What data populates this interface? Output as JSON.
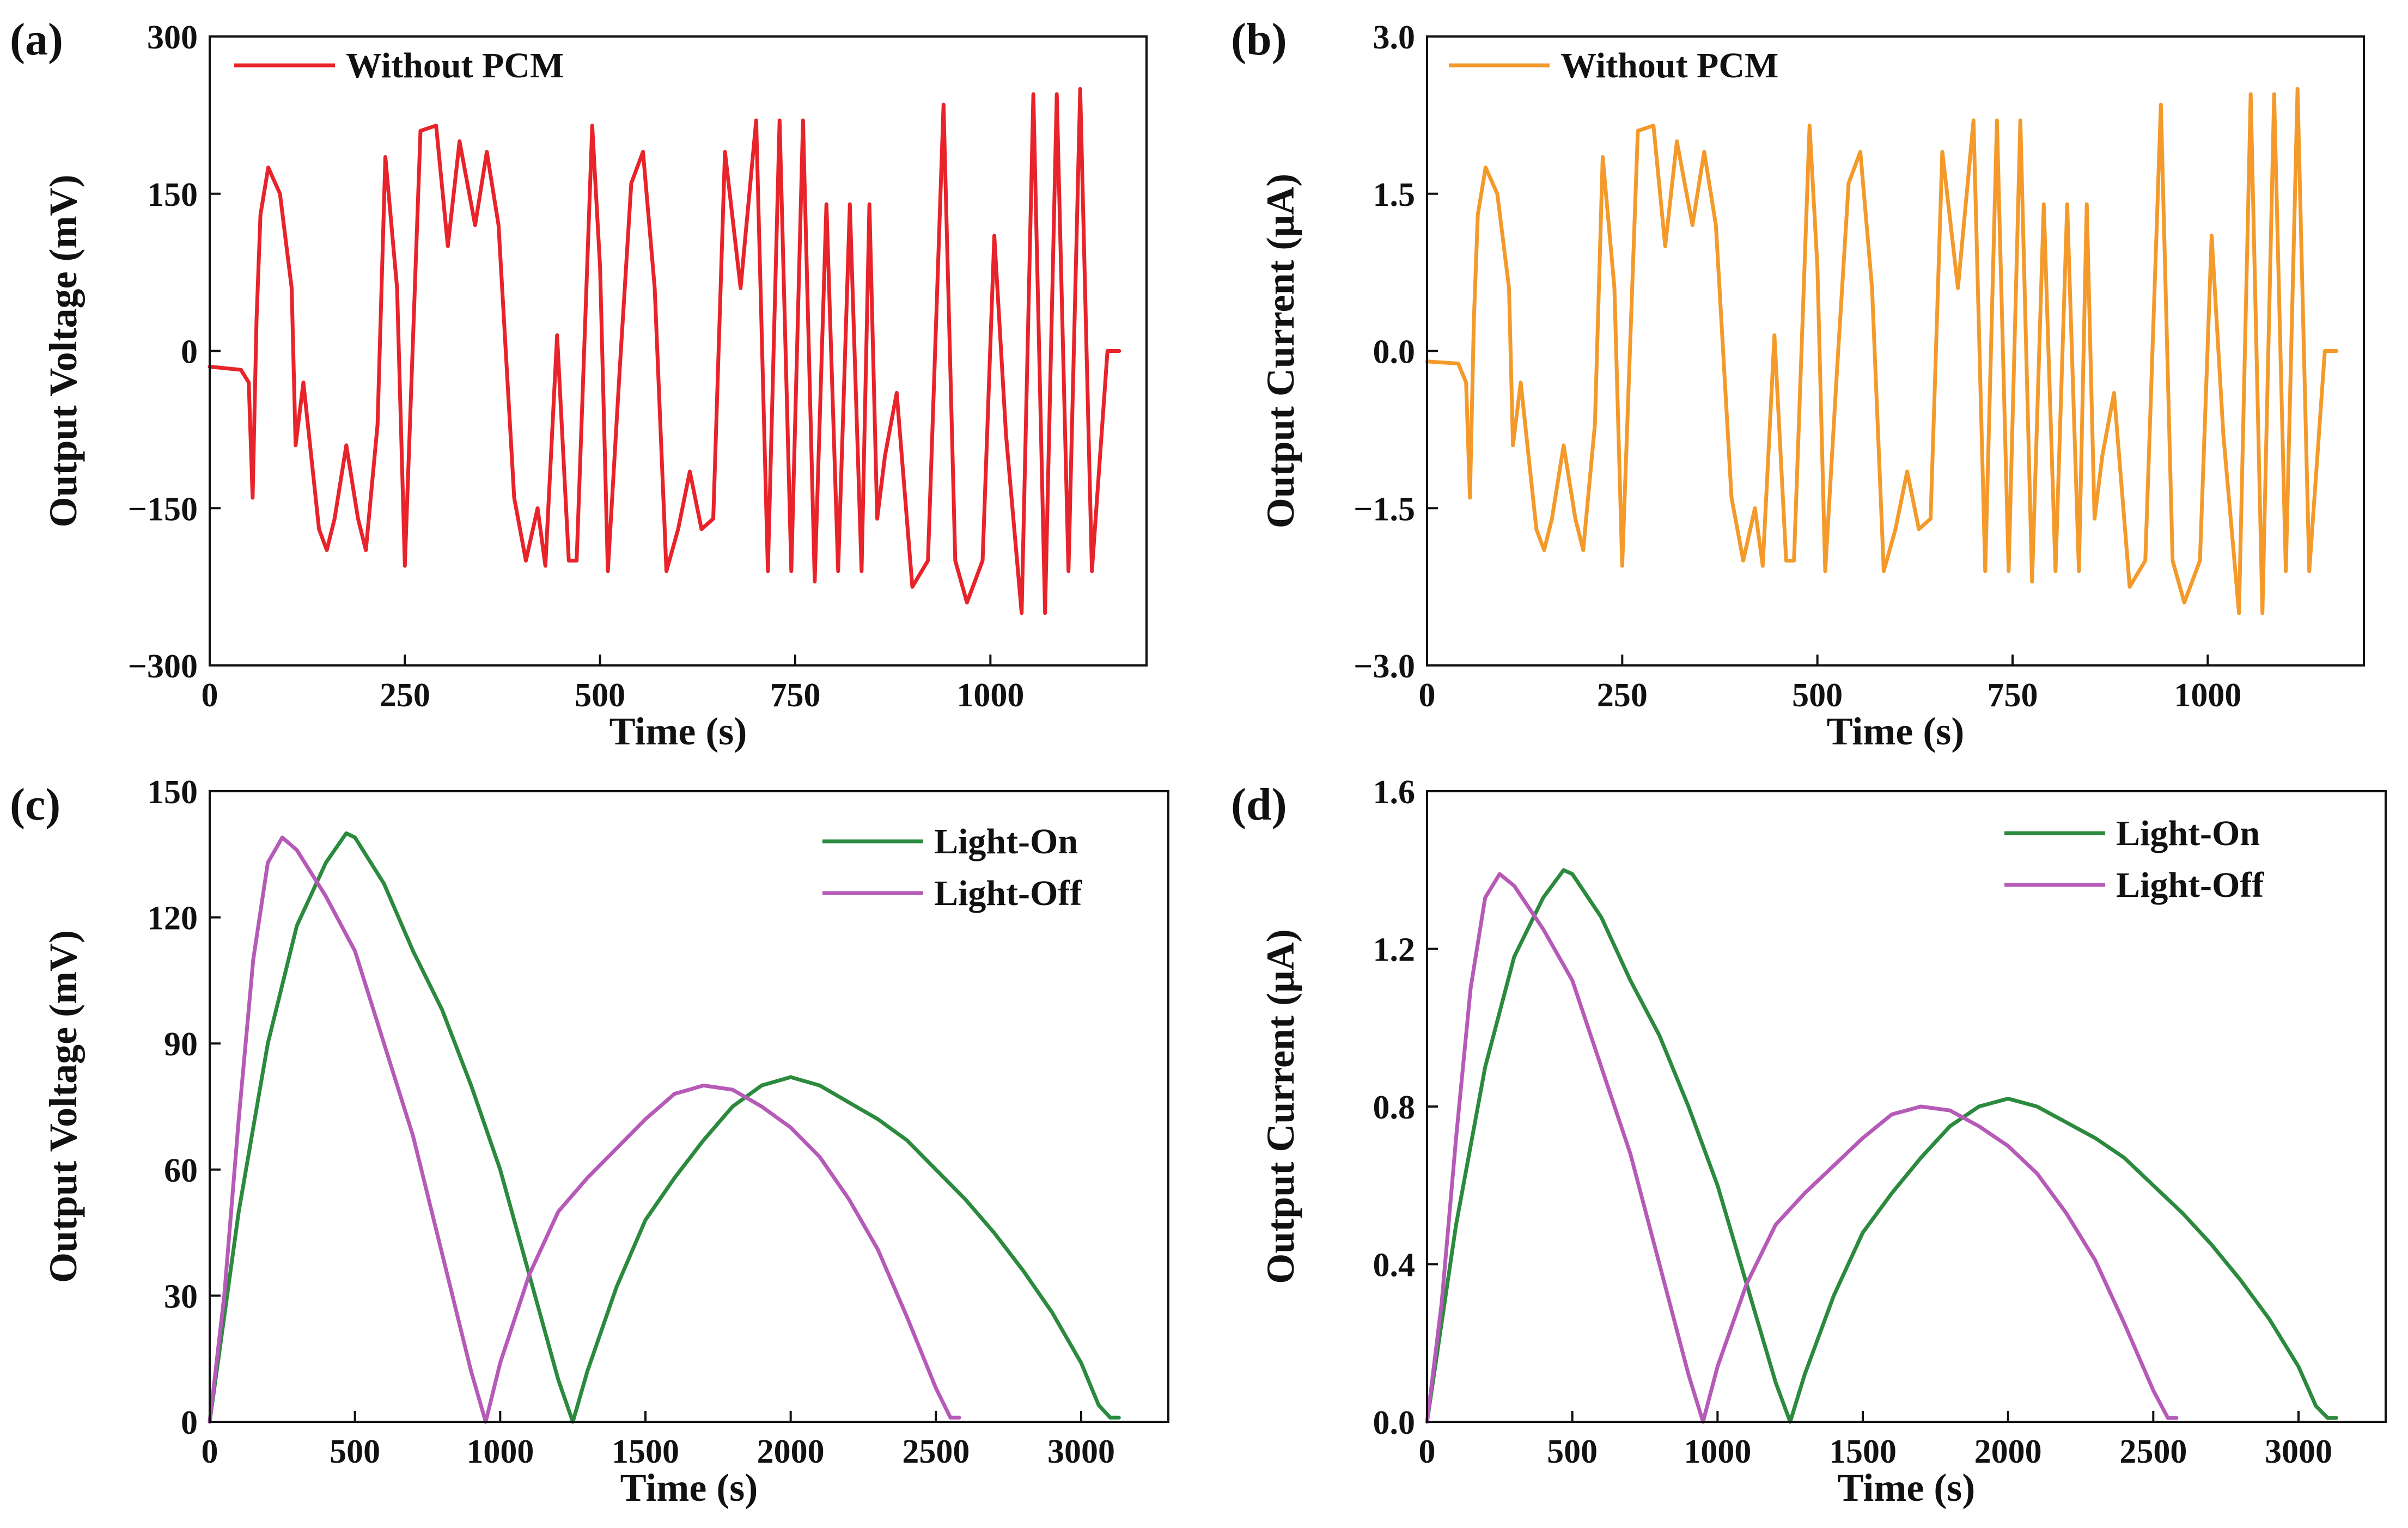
{
  "figure": {
    "panels": [
      "(a)",
      "(b)",
      "(c)",
      "(d)"
    ]
  },
  "chart_data": [
    {
      "id": "a",
      "type": "line",
      "panel_label": "(a)",
      "title": "",
      "xlabel": "Time (s)",
      "ylabel": "Output Voltage (mV)",
      "xlim": [
        0,
        1200
      ],
      "ylim": [
        -300,
        300
      ],
      "xticks": [
        0,
        250,
        500,
        750,
        1000
      ],
      "xtick_labels": [
        "0",
        "250",
        "500",
        "750",
        "1000"
      ],
      "yticks": [
        -300,
        -150,
        0,
        150,
        300
      ],
      "ytick_labels": [
        "−300",
        "−150",
        "0",
        "150",
        "300"
      ],
      "legend_position": "top-left",
      "series": [
        {
          "name": "Without PCM",
          "color": "#e8232a",
          "x": [
            0,
            40,
            50,
            55,
            60,
            65,
            75,
            90,
            100,
            105,
            110,
            120,
            130,
            140,
            150,
            160,
            175,
            190,
            200,
            215,
            225,
            240,
            250,
            270,
            290,
            305,
            320,
            340,
            355,
            370,
            390,
            405,
            420,
            430,
            445,
            460,
            470,
            490,
            500,
            510,
            525,
            540,
            555,
            570,
            585,
            600,
            615,
            630,
            645,
            660,
            680,
            700,
            715,
            730,
            745,
            760,
            775,
            790,
            805,
            820,
            835,
            845,
            855,
            865,
            880,
            900,
            920,
            940,
            955,
            970,
            990,
            1005,
            1020,
            1040,
            1055,
            1070,
            1085,
            1100,
            1115,
            1130,
            1150,
            1165
          ],
          "y": [
            -15,
            -18,
            -30,
            -140,
            30,
            130,
            175,
            150,
            90,
            60,
            -90,
            -30,
            -100,
            -170,
            -190,
            -160,
            -90,
            -160,
            -190,
            -70,
            185,
            60,
            -205,
            210,
            215,
            100,
            200,
            120,
            190,
            120,
            -140,
            -200,
            -150,
            -205,
            15,
            -200,
            -200,
            215,
            80,
            -210,
            -20,
            160,
            190,
            60,
            -210,
            -170,
            -115,
            -170,
            -160,
            190,
            60,
            220,
            -210,
            220,
            -210,
            220,
            -220,
            140,
            -210,
            140,
            -210,
            140,
            -160,
            -100,
            -40,
            -225,
            -200,
            235,
            -200,
            -240,
            -200,
            110,
            -80,
            -250,
            245,
            -250,
            245,
            -210,
            250,
            -210,
            0,
            0
          ]
        }
      ]
    },
    {
      "id": "b",
      "type": "line",
      "panel_label": "(b)",
      "title": "",
      "xlabel": "Time (s)",
      "ylabel": "Output Current (μA)",
      "xlim": [
        0,
        1200
      ],
      "ylim": [
        -3.0,
        3.0
      ],
      "xticks": [
        0,
        250,
        500,
        750,
        1000
      ],
      "xtick_labels": [
        "0",
        "250",
        "500",
        "750",
        "1000"
      ],
      "yticks": [
        -3.0,
        -1.5,
        0.0,
        1.5,
        3.0
      ],
      "ytick_labels": [
        "−3.0",
        "−1.5",
        "0.0",
        "1.5",
        "3.0"
      ],
      "legend_position": "top-left",
      "series": [
        {
          "name": "Without PCM",
          "color": "#f39a2b",
          "x": [
            0,
            40,
            50,
            55,
            60,
            65,
            75,
            90,
            100,
            105,
            110,
            120,
            130,
            140,
            150,
            160,
            175,
            190,
            200,
            215,
            225,
            240,
            250,
            270,
            290,
            305,
            320,
            340,
            355,
            370,
            390,
            405,
            420,
            430,
            445,
            460,
            470,
            490,
            500,
            510,
            525,
            540,
            555,
            570,
            585,
            600,
            615,
            630,
            645,
            660,
            680,
            700,
            715,
            730,
            745,
            760,
            775,
            790,
            805,
            820,
            835,
            845,
            855,
            865,
            880,
            900,
            920,
            940,
            955,
            970,
            990,
            1005,
            1020,
            1040,
            1055,
            1070,
            1085,
            1100,
            1115,
            1130,
            1150,
            1165
          ],
          "y": [
            -0.1,
            -0.12,
            -0.3,
            -1.4,
            0.3,
            1.3,
            1.75,
            1.5,
            0.9,
            0.6,
            -0.9,
            -0.3,
            -1.0,
            -1.7,
            -1.9,
            -1.6,
            -0.9,
            -1.6,
            -1.9,
            -0.7,
            1.85,
            0.6,
            -2.05,
            2.1,
            2.15,
            1.0,
            2.0,
            1.2,
            1.9,
            1.2,
            -1.4,
            -2.0,
            -1.5,
            -2.05,
            0.15,
            -2.0,
            -2.0,
            2.15,
            0.8,
            -2.1,
            -0.2,
            1.6,
            1.9,
            0.6,
            -2.1,
            -1.7,
            -1.15,
            -1.7,
            -1.6,
            1.9,
            0.6,
            2.2,
            -2.1,
            2.2,
            -2.1,
            2.2,
            -2.2,
            1.4,
            -2.1,
            1.4,
            -2.1,
            1.4,
            -1.6,
            -1.0,
            -0.4,
            -2.25,
            -2.0,
            2.35,
            -2.0,
            -2.4,
            -2.0,
            1.1,
            -0.8,
            -2.5,
            2.45,
            -2.5,
            2.45,
            -2.1,
            2.5,
            -2.1,
            0.0,
            0.0
          ]
        }
      ]
    },
    {
      "id": "c",
      "type": "line",
      "panel_label": "(c)",
      "title": "",
      "xlabel": "Time (s)",
      "ylabel": "Output Voltage (mV)",
      "xlim": [
        0,
        3300
      ],
      "ylim": [
        0,
        150
      ],
      "xticks": [
        0,
        500,
        1000,
        1500,
        2000,
        2500,
        3000
      ],
      "xtick_labels": [
        "0",
        "500",
        "1000",
        "1500",
        "2000",
        "2500",
        "3000"
      ],
      "yticks": [
        0,
        30,
        60,
        90,
        120,
        150
      ],
      "ytick_labels": [
        "0",
        "30",
        "60",
        "90",
        "120",
        "150"
      ],
      "legend_position": "top-right",
      "series": [
        {
          "name": "Light-On",
          "color": "#2b8a3e",
          "x": [
            0,
            100,
            200,
            300,
            400,
            470,
            500,
            600,
            700,
            800,
            900,
            1000,
            1100,
            1200,
            1250,
            1300,
            1400,
            1500,
            1600,
            1700,
            1800,
            1900,
            2000,
            2050,
            2100,
            2150,
            2200,
            2300,
            2400,
            2500,
            2600,
            2700,
            2800,
            2900,
            3000,
            3060,
            3100,
            3130
          ],
          "y": [
            0,
            50,
            90,
            118,
            133,
            140,
            139,
            128,
            112,
            98,
            80,
            60,
            35,
            10,
            0,
            12,
            32,
            48,
            58,
            67,
            75,
            80,
            82,
            81,
            80,
            78,
            76,
            72,
            67,
            60,
            53,
            45,
            36,
            26,
            14,
            4,
            1,
            1
          ]
        },
        {
          "name": "Light-Off",
          "color": "#b65ab8",
          "x": [
            0,
            50,
            100,
            150,
            200,
            250,
            300,
            400,
            500,
            600,
            700,
            800,
            900,
            950,
            1000,
            1100,
            1200,
            1300,
            1400,
            1500,
            1600,
            1700,
            1800,
            1900,
            2000,
            2100,
            2200,
            2300,
            2400,
            2500,
            2550,
            2580
          ],
          "y": [
            0,
            30,
            72,
            110,
            133,
            139,
            136,
            125,
            112,
            90,
            68,
            40,
            12,
            0,
            14,
            35,
            50,
            58,
            65,
            72,
            78,
            80,
            79,
            75,
            70,
            63,
            53,
            41,
            25,
            8,
            1,
            1
          ]
        }
      ]
    },
    {
      "id": "d",
      "type": "line",
      "panel_label": "(d)",
      "title": "",
      "xlabel": "Time (s)",
      "ylabel": "Output Current (μA)",
      "xlim": [
        0,
        3300
      ],
      "ylim": [
        0.0,
        1.6
      ],
      "xticks": [
        0,
        500,
        1000,
        1500,
        2000,
        2500,
        3000
      ],
      "xtick_labels": [
        "0",
        "500",
        "1000",
        "1500",
        "2000",
        "2500",
        "3000"
      ],
      "yticks": [
        0.0,
        0.4,
        0.8,
        1.2,
        1.6
      ],
      "ytick_labels": [
        "0.0",
        "0.4",
        "0.8",
        "1.2",
        "1.6"
      ],
      "legend_position": "top-right",
      "series": [
        {
          "name": "Light-On",
          "color": "#2b8a3e",
          "x": [
            0,
            100,
            200,
            300,
            400,
            470,
            500,
            600,
            700,
            800,
            900,
            1000,
            1100,
            1200,
            1250,
            1300,
            1400,
            1500,
            1600,
            1700,
            1800,
            1900,
            2000,
            2050,
            2100,
            2150,
            2200,
            2300,
            2400,
            2500,
            2600,
            2700,
            2800,
            2900,
            3000,
            3060,
            3100,
            3130
          ],
          "y": [
            0,
            0.5,
            0.9,
            1.18,
            1.33,
            1.4,
            1.39,
            1.28,
            1.12,
            0.98,
            0.8,
            0.6,
            0.35,
            0.1,
            0,
            0.12,
            0.32,
            0.48,
            0.58,
            0.67,
            0.75,
            0.8,
            0.82,
            0.81,
            0.8,
            0.78,
            0.76,
            0.72,
            0.67,
            0.6,
            0.53,
            0.45,
            0.36,
            0.26,
            0.14,
            0.04,
            0.01,
            0.01
          ]
        },
        {
          "name": "Light-Off",
          "color": "#b65ab8",
          "x": [
            0,
            50,
            100,
            150,
            200,
            250,
            300,
            400,
            500,
            600,
            700,
            800,
            900,
            950,
            1000,
            1100,
            1200,
            1300,
            1400,
            1500,
            1600,
            1700,
            1800,
            1900,
            2000,
            2100,
            2200,
            2300,
            2400,
            2500,
            2550,
            2580
          ],
          "y": [
            0,
            0.3,
            0.72,
            1.1,
            1.33,
            1.39,
            1.36,
            1.25,
            1.12,
            0.9,
            0.68,
            0.4,
            0.12,
            0,
            0.14,
            0.35,
            0.5,
            0.58,
            0.65,
            0.72,
            0.78,
            0.8,
            0.79,
            0.75,
            0.7,
            0.63,
            0.53,
            0.41,
            0.25,
            0.08,
            0.01,
            0.01
          ]
        }
      ]
    }
  ]
}
